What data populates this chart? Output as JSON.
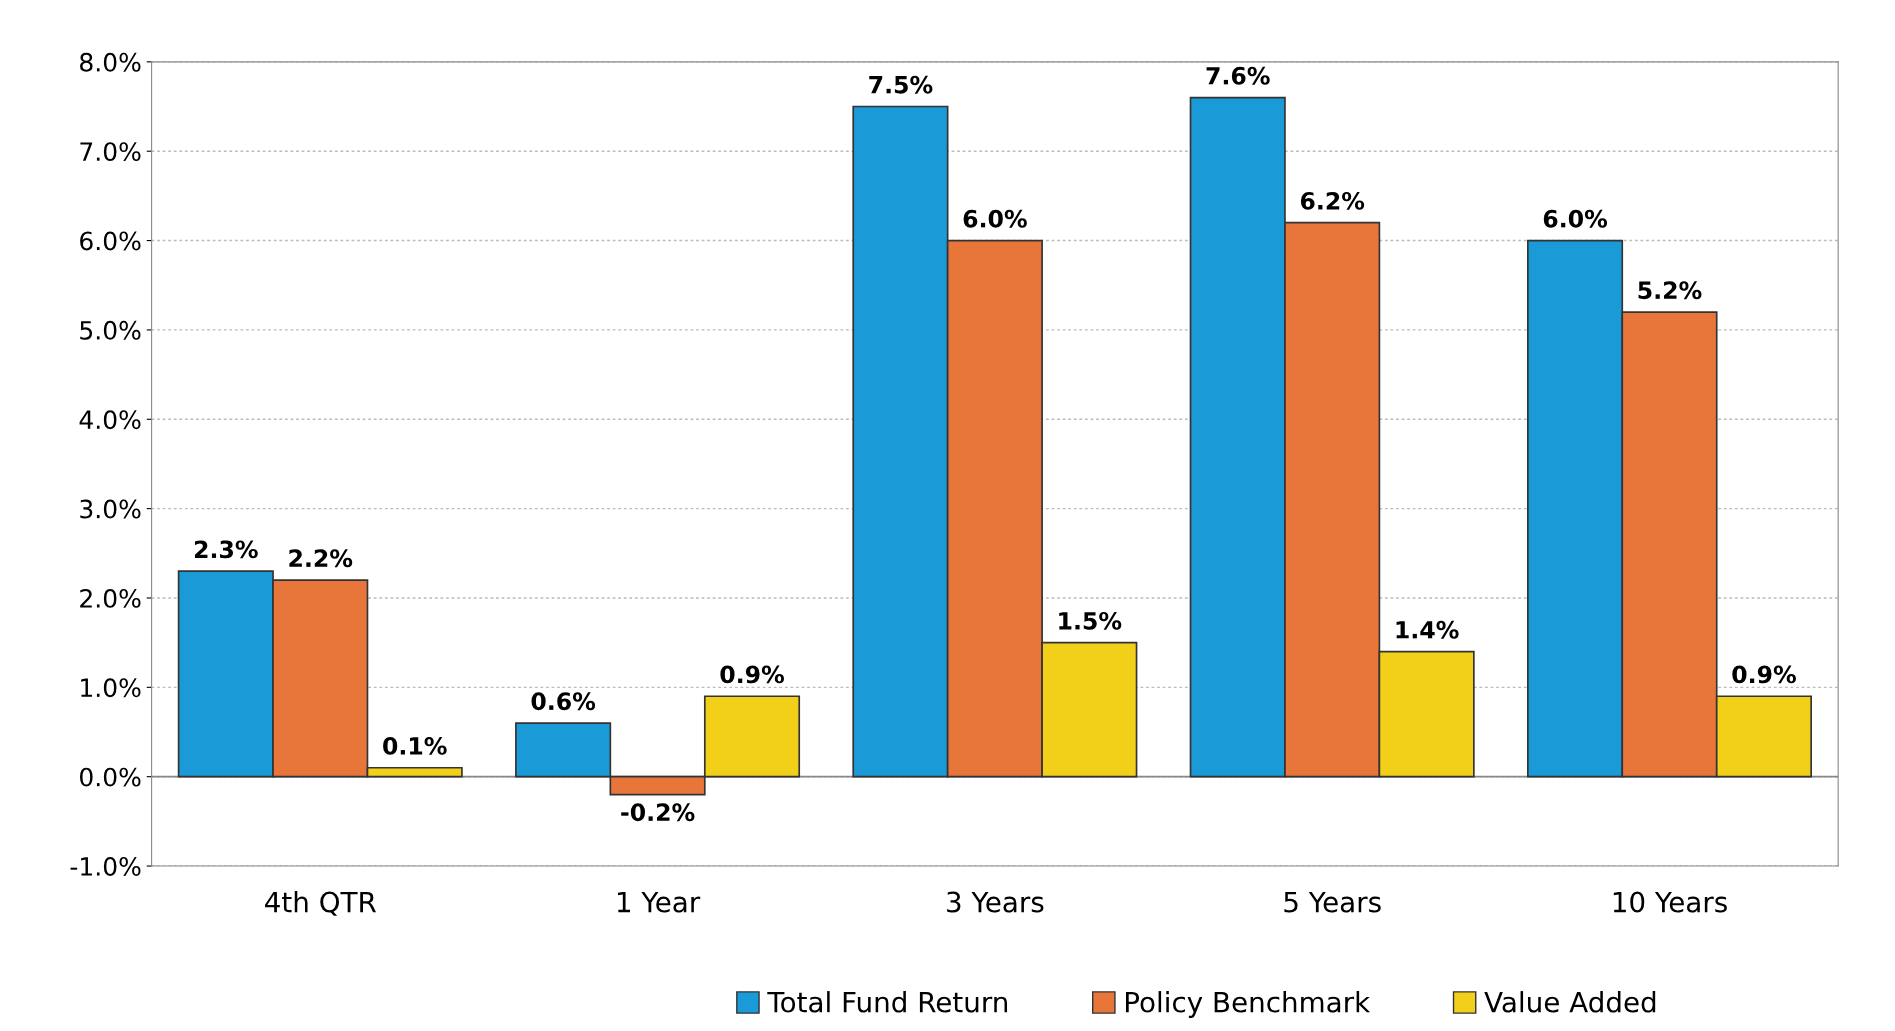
{
  "chart_data": {
    "type": "bar",
    "categories": [
      "4th QTR",
      "1 Year",
      "3 Years",
      "5 Years",
      "10 Years"
    ],
    "series": [
      {
        "name": "Total Fund Return",
        "color": "#1a9ad6",
        "values": [
          2.3,
          0.6,
          7.5,
          7.6,
          6.0
        ],
        "value_labels": [
          "2.3%",
          "0.6%",
          "7.5%",
          "7.6%",
          "6.0%"
        ]
      },
      {
        "name": "Policy Benchmark",
        "color": "#e8763a",
        "values": [
          2.2,
          -0.2,
          6.0,
          6.2,
          5.2
        ],
        "value_labels": [
          "2.2%",
          "-0.2%",
          "6.0%",
          "6.2%",
          "5.2%"
        ]
      },
      {
        "name": "Value Added",
        "color": "#f2d01a",
        "values": [
          0.1,
          0.9,
          1.5,
          1.4,
          0.9
        ],
        "value_labels": [
          "0.1%",
          "0.9%",
          "1.5%",
          "1.4%",
          "0.9%"
        ]
      }
    ],
    "ylim": [
      -1.0,
      8.0
    ],
    "yticks": [
      {
        "value": -1.0,
        "label": "-1.0%"
      },
      {
        "value": 0.0,
        "label": "0.0%"
      },
      {
        "value": 1.0,
        "label": "1.0%"
      },
      {
        "value": 2.0,
        "label": "2.0%"
      },
      {
        "value": 3.0,
        "label": "3.0%"
      },
      {
        "value": 4.0,
        "label": "4.0%"
      },
      {
        "value": 5.0,
        "label": "5.0%"
      },
      {
        "value": 6.0,
        "label": "6.0%"
      },
      {
        "value": 7.0,
        "label": "7.0%"
      },
      {
        "value": 8.0,
        "label": "8.0%"
      }
    ],
    "grid": "y",
    "legend": "bottom"
  }
}
